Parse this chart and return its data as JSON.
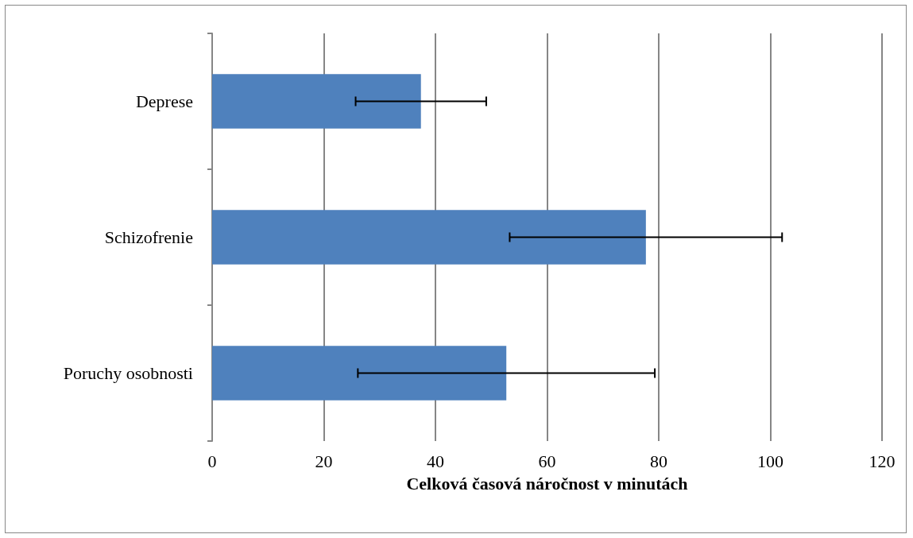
{
  "chart_data": {
    "type": "bar",
    "orientation": "horizontal",
    "xlabel": "Celková časová náročnost v minutách",
    "categories": [
      "Deprese",
      "Schizofrenie",
      "Poruchy osobnosti"
    ],
    "values": [
      37.4,
      77.7,
      52.7
    ],
    "color": "#4f81bd",
    "errors": [
      11.7,
      24.4,
      26.6
    ],
    "xlim": [
      0,
      120
    ],
    "xticks": [
      0,
      20,
      40,
      60,
      80,
      100,
      120
    ],
    "grid": "x"
  }
}
